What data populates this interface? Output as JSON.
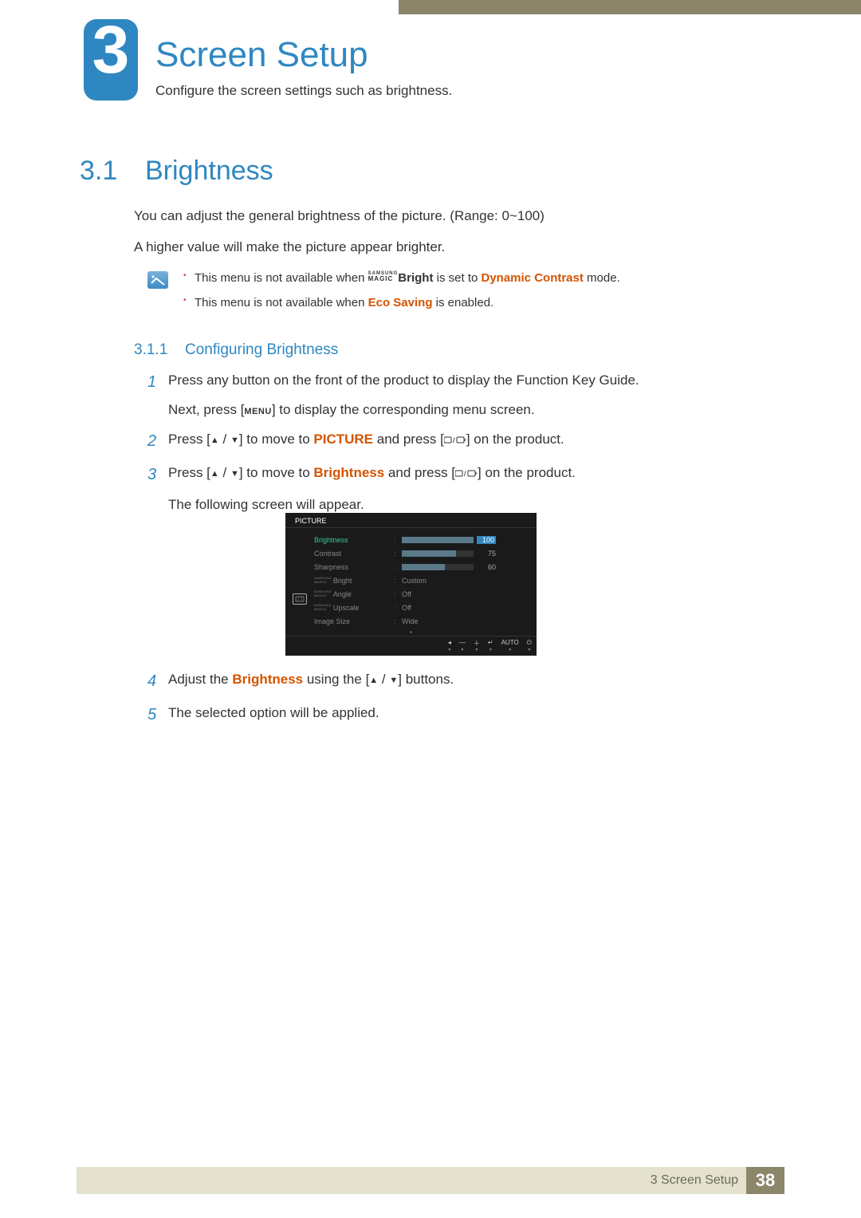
{
  "chapter": {
    "number": "3",
    "title": "Screen Setup",
    "desc": "Configure the screen settings such as brightness."
  },
  "section": {
    "num": "3.1",
    "title": "Brightness",
    "p1": "You can adjust the general brightness of the picture. (Range: 0~100)",
    "p2": "A higher value will make the picture appear brighter."
  },
  "notes": {
    "n1_a": "This menu is not available when ",
    "n1_magic": "Bright",
    "n1_b": " is set to ",
    "n1_c": "Dynamic Contrast",
    "n1_d": " mode.",
    "n2_a": "This menu is not available when ",
    "n2_b": "Eco Saving",
    "n2_c": " is enabled."
  },
  "subsection": {
    "num": "3.1.1",
    "title": "Configuring Brightness"
  },
  "steps": {
    "s1a": "Press any button on the front of the product to display the Function Key Guide.",
    "s1b_a": "Next, press [",
    "s1b_menu": "MENU",
    "s1b_b": "] to display the corresponding menu screen.",
    "s2_a": "Press [",
    "s2_b": "] to move to ",
    "s2_pic": "PICTURE",
    "s2_c": " and press [",
    "s2_d": "] on the product.",
    "s3_a": "Press [",
    "s3_b": "] to move to ",
    "s3_bright": "Brightness",
    "s3_c": " and press [",
    "s3_d": "] on the product.",
    "s3_e": "The following screen will appear.",
    "s4_a": "Adjust the ",
    "s4_bright": "Brightness",
    "s4_b": " using the [",
    "s4_c": "] buttons.",
    "s5": "The selected option will be applied."
  },
  "osd": {
    "title": "PICTURE",
    "rows": [
      {
        "label": "Brightness",
        "value": 100,
        "bar": 100,
        "selected": true
      },
      {
        "label": "Contrast",
        "value": 75,
        "bar": 75
      },
      {
        "label": "Sharpness",
        "value": 60,
        "bar": 60
      },
      {
        "label_magic": "Bright",
        "text": "Custom"
      },
      {
        "label_magic": "Angle",
        "text": "Off"
      },
      {
        "label_magic": "Upscale",
        "text": "Off"
      },
      {
        "label": "Image Size",
        "text": "Wide"
      }
    ],
    "footer": [
      "◂",
      "—",
      "＋",
      "↵",
      "AUTO",
      "⏻"
    ],
    "colors": {
      "bg": "#1a1a1a",
      "sel": "#3c9",
      "bar_fill": "#5a7a8a",
      "val_sel_bg": "#2f87c1"
    }
  },
  "footer": {
    "text": "3 Screen Setup",
    "page": "38"
  },
  "colors": {
    "accent": "#2f87c1",
    "orange": "#d35400",
    "khaki": "#8b8668",
    "beige": "#e5e1cf"
  }
}
